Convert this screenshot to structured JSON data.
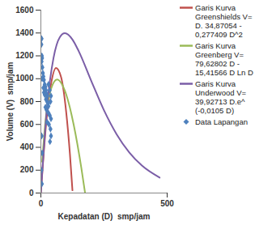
{
  "chart_data": {
    "type": "line",
    "x_label": "Kepadatan (D)  smp/jam",
    "y_label": "Volume (V)  smp/jam",
    "xlim": [
      0,
      500
    ],
    "xticks": [
      0,
      500
    ],
    "ylim": [
      0,
      1600
    ],
    "yticks": [
      0,
      200,
      400,
      600,
      800,
      1000,
      1200,
      1400,
      1600
    ],
    "grid": false,
    "legend": "right",
    "series": [
      {
        "name": "Garis Kurva Greenshields V= D. 34,87054 - 0,277409 D^2",
        "type": "line",
        "color": "#c0504d",
        "x": [
          0,
          20,
          40,
          60,
          80,
          100,
          115,
          125
        ],
        "values": [
          0,
          586,
          951,
          1094,
          1014,
          713,
          341,
          24
        ]
      },
      {
        "name": "Garis Kurva Greenberg V= 79,62802 D - 15,41566 D Ln D",
        "type": "line",
        "color": "#9bbb59",
        "x": [
          5,
          20,
          40,
          64,
          100,
          130,
          160,
          175
        ],
        "values": [
          274,
          669,
          910,
          993,
          864,
          597,
          222,
          0
        ]
      },
      {
        "name": "Garis Kurva Underwood V= 39,92713 D.e^ (-0,0105 D)",
        "type": "line",
        "color": "#7b5ea7",
        "x": [
          0,
          25,
          50,
          75,
          95,
          125,
          150,
          200,
          250,
          300,
          350,
          400,
          470
        ],
        "values": [
          0,
          768,
          1181,
          1363,
          1398,
          1343,
          1240,
          978,
          723,
          514,
          355,
          240,
          135
        ]
      },
      {
        "name": "Data Lapangan",
        "type": "scatter",
        "marker": "diamond",
        "color": "#4f81bd",
        "x": [
          3,
          2,
          4,
          5,
          3,
          6,
          8,
          10,
          5,
          12,
          15,
          18,
          20,
          22,
          25,
          10,
          12,
          15,
          20,
          25,
          28,
          30,
          18,
          22,
          30,
          35,
          40,
          25,
          32,
          38,
          40,
          36,
          30,
          35,
          40,
          38,
          3,
          5,
          2,
          4
        ],
        "values": [
          1350,
          1300,
          1200,
          1180,
          1150,
          1100,
          1050,
          1020,
          1000,
          990,
          950,
          930,
          900,
          870,
          850,
          920,
          880,
          860,
          820,
          800,
          780,
          760,
          750,
          730,
          700,
          680,
          650,
          620,
          600,
          560,
          500,
          450,
          950,
          900,
          850,
          800,
          500,
          350,
          200,
          80
        ]
      }
    ]
  }
}
